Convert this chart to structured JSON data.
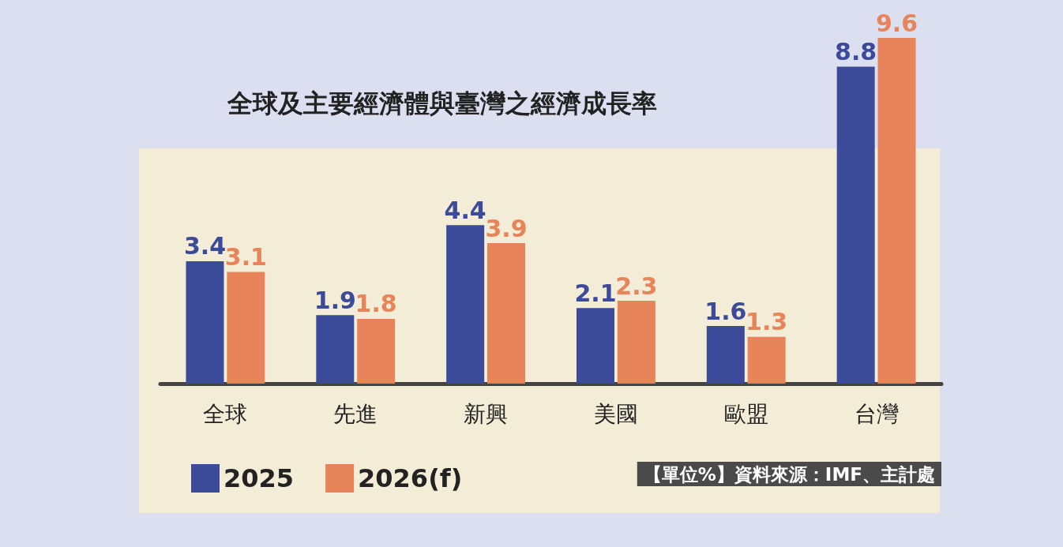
{
  "chart_data": {
    "type": "bar",
    "title": "全球及主要經濟體與臺灣之經濟成長率",
    "categories": [
      "全球",
      "先進",
      "新興",
      "美國",
      "歐盟",
      "台灣"
    ],
    "series": [
      {
        "name": "2025",
        "color": "#3c4a9a",
        "values": [
          3.4,
          1.9,
          4.4,
          2.1,
          1.6,
          8.8
        ]
      },
      {
        "name": "2026(f)",
        "color": "#e8845a",
        "values": [
          3.1,
          1.8,
          3.9,
          2.3,
          1.3,
          9.6
        ]
      }
    ],
    "data_labels": true,
    "legend": "bottom left",
    "annotations": [
      "【單位%】資料來源：IMF、主計處"
    ]
  }
}
